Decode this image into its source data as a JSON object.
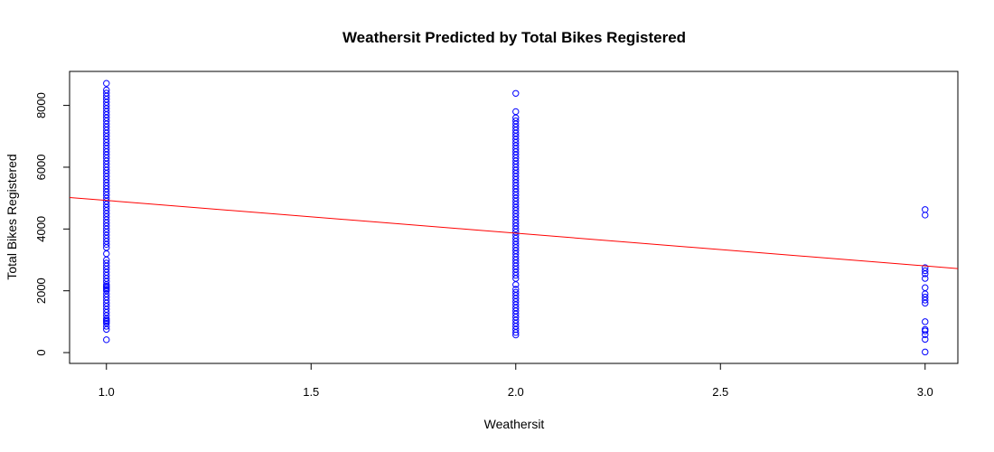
{
  "chart_data": {
    "type": "scatter",
    "title": "Weathersit Predicted by Total Bikes Registered",
    "xlabel": "Weathersit",
    "ylabel": "Total Bikes Registered",
    "xlim": [
      0.91,
      3.08
    ],
    "ylim": [
      -350,
      9100
    ],
    "xticks": [
      1.0,
      1.5,
      2.0,
      2.5,
      3.0
    ],
    "xtick_labels": [
      "1.0",
      "1.5",
      "2.0",
      "2.5",
      "3.0"
    ],
    "yticks": [
      0,
      2000,
      4000,
      6000,
      8000
    ],
    "ytick_labels": [
      "0",
      "2000",
      "4000",
      "6000",
      "8000"
    ],
    "grid": false,
    "point_color": "#0000ff",
    "line_color": "#ff0000",
    "series": [
      {
        "x": 1,
        "values": [
          416,
          750,
          850,
          950,
          1000,
          1050,
          1100,
          1200,
          1300,
          1400,
          1500,
          1600,
          1700,
          1800,
          1900,
          2000,
          2050,
          2100,
          2150,
          2200,
          2300,
          2400,
          2500,
          2600,
          2700,
          2800,
          2900,
          3000,
          3200,
          3400,
          3500,
          3600,
          3700,
          3800,
          3900,
          4000,
          4100,
          4200,
          4300,
          4400,
          4500,
          4600,
          4700,
          4800,
          4900,
          5000,
          5100,
          5200,
          5300,
          5400,
          5500,
          5600,
          5700,
          5800,
          5900,
          6000,
          6100,
          6200,
          6300,
          6400,
          6500,
          6600,
          6700,
          6800,
          6900,
          7000,
          7100,
          7200,
          7300,
          7400,
          7500,
          7600,
          7700,
          7800,
          7900,
          8000,
          8100,
          8200,
          8300,
          8400,
          8500,
          8714
        ]
      },
      {
        "x": 2,
        "values": [
          570,
          650,
          750,
          850,
          950,
          1050,
          1150,
          1250,
          1350,
          1450,
          1550,
          1650,
          1750,
          1850,
          1950,
          2050,
          2200,
          2400,
          2500,
          2600,
          2700,
          2800,
          2900,
          3000,
          3100,
          3200,
          3300,
          3400,
          3500,
          3600,
          3700,
          3800,
          3900,
          4000,
          4100,
          4200,
          4300,
          4400,
          4500,
          4600,
          4700,
          4800,
          4900,
          5000,
          5100,
          5200,
          5300,
          5400,
          5500,
          5600,
          5700,
          5800,
          5900,
          6000,
          6100,
          6200,
          6300,
          6400,
          6500,
          6600,
          6700,
          6800,
          6900,
          7000,
          7100,
          7200,
          7300,
          7400,
          7500,
          7600,
          7800,
          8390
        ]
      },
      {
        "x": 3,
        "values": [
          20,
          430,
          580,
          700,
          750,
          1000,
          1600,
          1700,
          1800,
          1900,
          2100,
          2400,
          2550,
          2650,
          2750,
          4450,
          4630
        ]
      }
    ],
    "regression": {
      "x": [
        0.91,
        3.08
      ],
      "y": [
        5020,
        2720
      ]
    }
  }
}
